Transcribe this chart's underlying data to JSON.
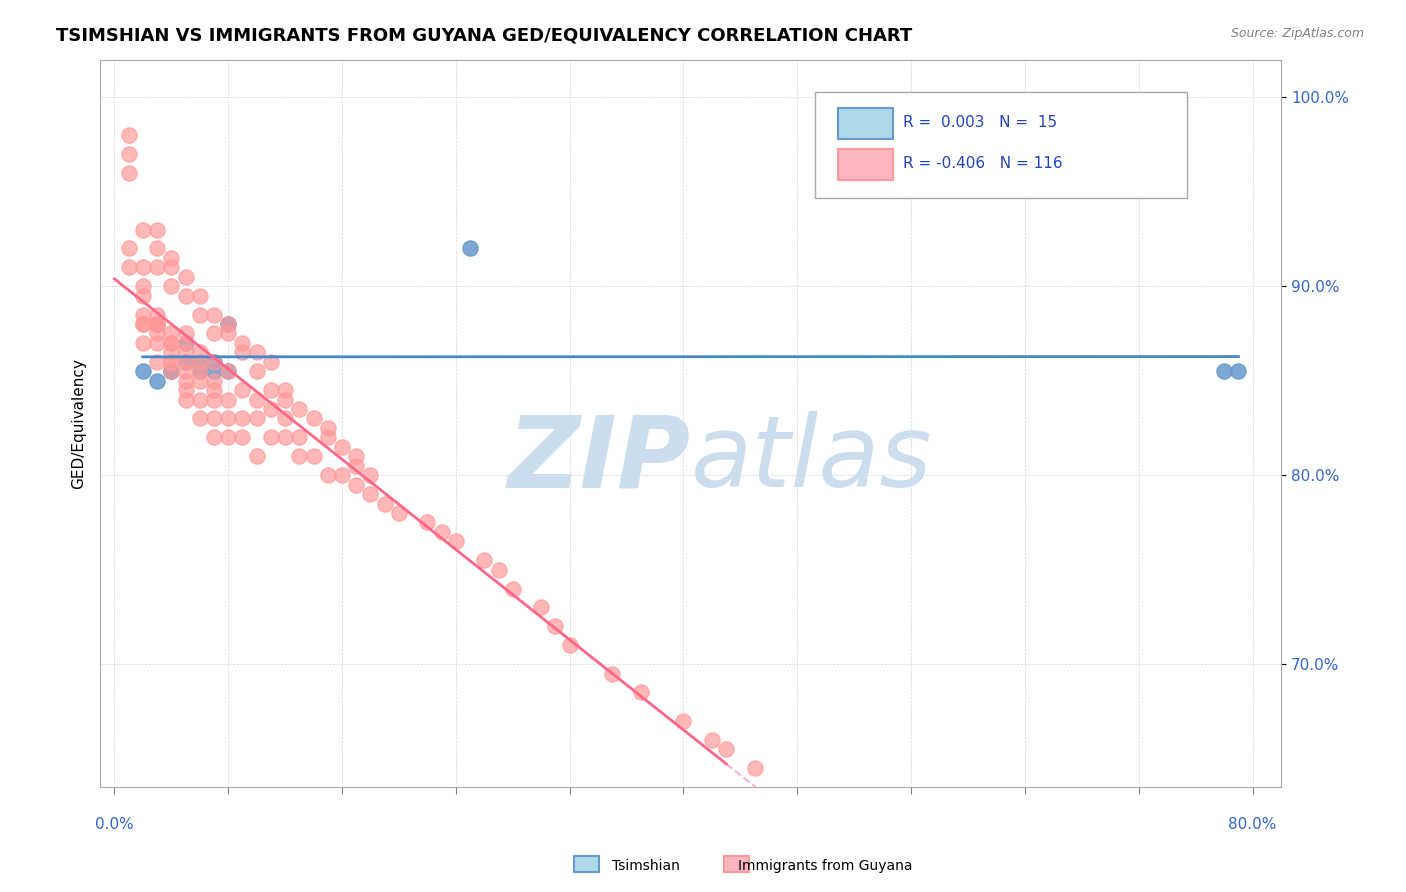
{
  "title": "TSIMSHIAN VS IMMIGRANTS FROM GUYANA GED/EQUIVALENCY CORRELATION CHART",
  "source": "Source: ZipAtlas.com",
  "ylabel": "GED/Equivalency",
  "yticks": [
    "70.0%",
    "80.0%",
    "90.0%",
    "100.0%"
  ],
  "ytick_vals": [
    0.7,
    0.8,
    0.9,
    1.0
  ],
  "ylim": [
    0.635,
    1.02
  ],
  "xlim": [
    -0.01,
    0.82
  ],
  "blue_color": "#6699CC",
  "pink_color": "#FF9999",
  "blue_fill": "#ADD8E6",
  "pink_fill": "#FFB6C1",
  "trend_blue": "#4488CC",
  "trend_pink": "#FF6688",
  "watermark_color": "#CCDDEE",
  "background_color": "#FFFFFF",
  "blue_scatter_x": [
    0.02,
    0.04,
    0.25,
    0.78,
    0.79,
    0.05,
    0.07,
    0.08,
    0.06,
    0.03,
    0.04,
    0.05,
    0.06,
    0.07,
    0.08
  ],
  "blue_scatter_y": [
    0.855,
    0.855,
    0.92,
    0.855,
    0.855,
    0.87,
    0.86,
    0.88,
    0.86,
    0.85,
    0.855,
    0.86,
    0.855,
    0.855,
    0.855
  ],
  "pink_scatter_x": [
    0.01,
    0.01,
    0.02,
    0.02,
    0.02,
    0.02,
    0.02,
    0.02,
    0.03,
    0.03,
    0.03,
    0.03,
    0.03,
    0.03,
    0.03,
    0.03,
    0.04,
    0.04,
    0.04,
    0.04,
    0.04,
    0.04,
    0.04,
    0.05,
    0.05,
    0.05,
    0.05,
    0.05,
    0.05,
    0.05,
    0.05,
    0.06,
    0.06,
    0.06,
    0.06,
    0.06,
    0.06,
    0.07,
    0.07,
    0.07,
    0.07,
    0.07,
    0.07,
    0.08,
    0.08,
    0.08,
    0.08,
    0.09,
    0.09,
    0.09,
    0.1,
    0.1,
    0.1,
    0.11,
    0.11,
    0.12,
    0.12,
    0.13,
    0.13,
    0.14,
    0.15,
    0.16,
    0.17,
    0.18,
    0.19,
    0.2,
    0.22,
    0.23,
    0.24,
    0.26,
    0.27,
    0.28,
    0.3,
    0.31,
    0.32,
    0.35,
    0.37,
    0.4,
    0.42,
    0.43,
    0.45,
    0.01,
    0.01,
    0.01,
    0.02,
    0.02,
    0.03,
    0.03,
    0.03,
    0.04,
    0.04,
    0.04,
    0.05,
    0.05,
    0.06,
    0.06,
    0.07,
    0.07,
    0.08,
    0.08,
    0.09,
    0.09,
    0.1,
    0.1,
    0.11,
    0.11,
    0.12,
    0.12,
    0.13,
    0.14,
    0.15,
    0.15,
    0.16,
    0.17,
    0.17,
    0.18
  ],
  "pink_scatter_y": [
    0.97,
    0.98,
    0.88,
    0.87,
    0.895,
    0.9,
    0.885,
    0.88,
    0.88,
    0.885,
    0.88,
    0.875,
    0.88,
    0.87,
    0.88,
    0.86,
    0.87,
    0.875,
    0.86,
    0.87,
    0.865,
    0.86,
    0.855,
    0.875,
    0.87,
    0.865,
    0.86,
    0.855,
    0.845,
    0.84,
    0.85,
    0.865,
    0.86,
    0.855,
    0.85,
    0.84,
    0.83,
    0.86,
    0.85,
    0.845,
    0.84,
    0.83,
    0.82,
    0.855,
    0.84,
    0.83,
    0.82,
    0.845,
    0.83,
    0.82,
    0.84,
    0.83,
    0.81,
    0.835,
    0.82,
    0.83,
    0.82,
    0.82,
    0.81,
    0.81,
    0.8,
    0.8,
    0.795,
    0.79,
    0.785,
    0.78,
    0.775,
    0.77,
    0.765,
    0.755,
    0.75,
    0.74,
    0.73,
    0.72,
    0.71,
    0.695,
    0.685,
    0.67,
    0.66,
    0.655,
    0.645,
    0.92,
    0.91,
    0.96,
    0.91,
    0.93,
    0.92,
    0.91,
    0.93,
    0.91,
    0.9,
    0.915,
    0.905,
    0.895,
    0.895,
    0.885,
    0.885,
    0.875,
    0.88,
    0.875,
    0.87,
    0.865,
    0.865,
    0.855,
    0.86,
    0.845,
    0.845,
    0.84,
    0.835,
    0.83,
    0.825,
    0.82,
    0.815,
    0.81,
    0.805,
    0.8
  ]
}
